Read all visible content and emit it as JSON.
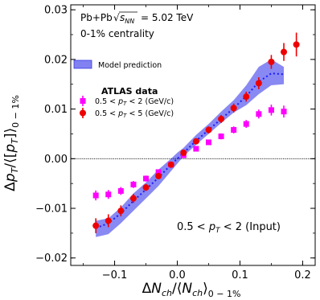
{
  "chart_data": {
    "type": "scatter",
    "title": "",
    "annotations": {
      "system": "Pb+Pb",
      "energy_value": "= 5.02 TeV",
      "centrality": "0-1% centrality",
      "input_note": "(Input)"
    },
    "legend": {
      "model_label": "Model prediction",
      "data_header": "ATLAS data",
      "placement": "upper-left"
    },
    "xlim": [
      -0.17,
      0.22
    ],
    "ylim": [
      -0.0215,
      0.031
    ],
    "xticks": [
      -0.1,
      0.0,
      0.1,
      0.2
    ],
    "xtick_labels": [
      "−0.1",
      "0.0",
      "0.1",
      "0.2"
    ],
    "yticks": [
      -0.02,
      -0.01,
      0.0,
      0.01,
      0.02,
      0.03
    ],
    "ytick_labels": [
      "−0.02",
      "−0.01",
      "0.00",
      "0.01",
      "0.02",
      "0.03"
    ],
    "grid": false,
    "reference_line_y": 0.0,
    "model_band": {
      "color": "#6b6bf0",
      "line_color": "#1a1aff",
      "x": [
        -0.13,
        -0.11,
        -0.09,
        -0.07,
        -0.05,
        -0.03,
        -0.01,
        0.0,
        0.01,
        0.03,
        0.05,
        0.07,
        0.09,
        0.11,
        0.13,
        0.15,
        0.17
      ],
      "lower": [
        -0.0158,
        -0.0152,
        -0.013,
        -0.0105,
        -0.008,
        -0.0055,
        -0.0025,
        -0.001,
        0.0005,
        0.0028,
        0.005,
        0.0072,
        0.0093,
        0.0108,
        0.013,
        0.0148,
        0.015
      ],
      "upper": [
        -0.0125,
        -0.012,
        -0.0098,
        -0.007,
        -0.0048,
        -0.0022,
        0.0,
        0.0012,
        0.0022,
        0.0048,
        0.007,
        0.0095,
        0.0118,
        0.0148,
        0.0185,
        0.02,
        0.0185
      ],
      "center": [
        -0.014,
        -0.013,
        -0.011,
        -0.0085,
        -0.0062,
        -0.0038,
        -0.0012,
        0.0,
        0.0012,
        0.0036,
        0.0058,
        0.008,
        0.0102,
        0.0126,
        0.0155,
        0.0172,
        0.017
      ]
    },
    "series": [
      {
        "name": "0.5 < pT < 2 (GeV/c)",
        "color": "#ff00ff",
        "marker": "square",
        "x": [
          -0.13,
          -0.11,
          -0.09,
          -0.07,
          -0.05,
          -0.03,
          -0.01,
          0.01,
          0.03,
          0.05,
          0.07,
          0.09,
          0.11,
          0.13,
          0.15,
          0.17
        ],
        "y": [
          -0.0074,
          -0.0072,
          -0.0065,
          -0.0052,
          -0.004,
          -0.0027,
          -0.0012,
          0.0007,
          0.002,
          0.0033,
          0.0045,
          0.0058,
          0.007,
          0.009,
          0.0098,
          0.0095
        ],
        "err": [
          0.001,
          0.0009,
          0.0008,
          0.0007,
          0.0006,
          0.0005,
          0.0004,
          0.0004,
          0.0005,
          0.0005,
          0.0006,
          0.0007,
          0.0008,
          0.0009,
          0.0011,
          0.0012
        ]
      },
      {
        "name": "0.5 < pT < 5 (GeV/c)",
        "color": "#ee0000",
        "marker": "circle",
        "x": [
          -0.13,
          -0.11,
          -0.09,
          -0.07,
          -0.05,
          -0.03,
          -0.01,
          0.01,
          0.03,
          0.05,
          0.07,
          0.09,
          0.11,
          0.13,
          0.15,
          0.17,
          0.19
        ],
        "y": [
          -0.0135,
          -0.0125,
          -0.0105,
          -0.008,
          -0.0058,
          -0.0035,
          -0.0012,
          0.0012,
          0.0035,
          0.0058,
          0.008,
          0.0102,
          0.0125,
          0.0152,
          0.0195,
          0.0215,
          0.023
        ],
        "err": [
          0.0015,
          0.0013,
          0.0011,
          0.0009,
          0.0007,
          0.0006,
          0.0005,
          0.0005,
          0.0006,
          0.0007,
          0.0008,
          0.0009,
          0.001,
          0.0012,
          0.0014,
          0.0018,
          0.0024
        ]
      }
    ]
  }
}
